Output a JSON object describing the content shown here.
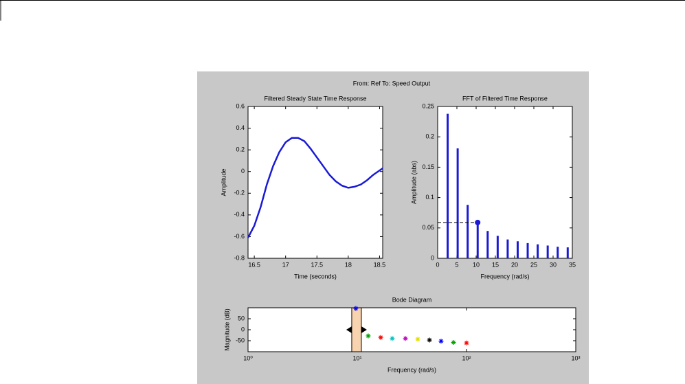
{
  "figure_title": "From: Ref  To: Speed Output",
  "chart_data": [
    {
      "type": "line",
      "title": "Filtered Steady State Time Response",
      "x_label": "Time (seconds)",
      "y_label": "Amplitude",
      "color": "#1a1ad6",
      "x": [
        16.4,
        16.5,
        16.6,
        16.7,
        16.8,
        16.9,
        17.0,
        17.1,
        17.2,
        17.3,
        17.4,
        17.5,
        17.6,
        17.7,
        17.8,
        17.9,
        18.0,
        18.1,
        18.2,
        18.3,
        18.4,
        18.55
      ],
      "values": [
        -0.61,
        -0.5,
        -0.33,
        -0.12,
        0.05,
        0.18,
        0.27,
        0.31,
        0.31,
        0.28,
        0.21,
        0.13,
        0.05,
        -0.03,
        -0.09,
        -0.13,
        -0.15,
        -0.14,
        -0.12,
        -0.08,
        -0.03,
        0.03
      ],
      "xlim": [
        16.4,
        18.55
      ],
      "xticks": [
        16.5,
        17,
        17.5,
        18,
        18.5
      ],
      "ylim": [
        -0.8,
        0.6
      ],
      "yticks": [
        -0.8,
        -0.6,
        -0.4,
        -0.2,
        0,
        0.2,
        0.4,
        0.6
      ]
    },
    {
      "type": "stem",
      "title": "FFT of Filtered Time Response",
      "x_label": "Frequency (rad/s)",
      "y_label": "Amplitude (abs)",
      "color": "#1a1ad6",
      "highlight_index": 3,
      "x": [
        2.6,
        5.2,
        7.8,
        10.4,
        13,
        15.6,
        18.2,
        20.8,
        23.4,
        26,
        28.6,
        31.2,
        33.8
      ],
      "values": [
        0.238,
        0.181,
        0.088,
        0.059,
        0.045,
        0.037,
        0.031,
        0.028,
        0.025,
        0.023,
        0.021,
        0.019,
        0.018
      ],
      "xlim": [
        0,
        35
      ],
      "xticks": [
        0,
        5,
        10,
        15,
        20,
        25,
        30,
        35
      ],
      "ylim": [
        0,
        0.25
      ],
      "yticks": [
        0,
        0.05,
        0.1,
        0.15,
        0.2,
        0.25
      ]
    },
    {
      "type": "scatter",
      "title": "Bode Diagram",
      "x_label": "Frequency  (rad/s)",
      "y_label": "Magnitude (dB)",
      "log_x": true,
      "x": [
        9.7,
        12.6,
        16.4,
        20.9,
        27.6,
        35.8,
        45.8,
        58.5,
        76,
        100
      ],
      "values": [
        97,
        -28,
        -35,
        -40,
        -40,
        -43,
        -47,
        -52,
        -58,
        -60
      ],
      "colors": [
        "#0000ff",
        "#00a000",
        "#ff0000",
        "#00c0c0",
        "#c000c0",
        "#e0e000",
        "#000000",
        "#0000ff",
        "#00a000",
        "#ff0000"
      ],
      "highlight_range": [
        8.9,
        10.9
      ],
      "xlim": [
        1,
        1000
      ],
      "xticks": [
        {
          "value": 1,
          "label": "10⁰"
        },
        {
          "value": 10,
          "label": "10¹"
        },
        {
          "value": 100,
          "label": "10²"
        },
        {
          "value": 1000,
          "label": "10³"
        }
      ],
      "ylim": [
        -100,
        100
      ],
      "yticks": [
        -50,
        0,
        50
      ]
    }
  ]
}
